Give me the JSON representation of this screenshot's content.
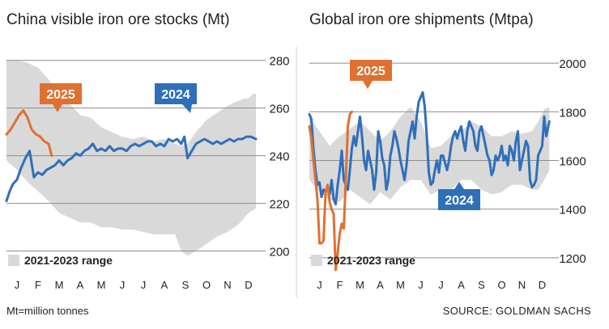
{
  "colors": {
    "series_2024": "#2f6fba",
    "series_2025": "#e07030",
    "range_fill": "#d9d9d9",
    "grid": "#8c8c8c",
    "text": "#222222"
  },
  "footer": {
    "note": "Mt=million tonnes",
    "source": "SOURCE: GOLDMAN SACHS"
  },
  "chart_data": [
    {
      "type": "line",
      "title": "China visible iron ore stocks (Mt)",
      "xlabel": "",
      "ylabel": "",
      "months": [
        "J",
        "F",
        "M",
        "A",
        "M",
        "J",
        "J",
        "A",
        "S",
        "O",
        "N",
        "D"
      ],
      "xlim": [
        0,
        12
      ],
      "ylim": [
        190,
        285
      ],
      "yticks": [
        200,
        220,
        240,
        260,
        280
      ],
      "grid": true,
      "legend_position": "bottom-left",
      "legend_label": "2021-2023 range",
      "range_band": {
        "x": [
          0,
          0.5,
          1.0,
          1.5,
          2.0,
          2.5,
          3.0,
          3.5,
          4.0,
          4.5,
          5.0,
          5.5,
          6.0,
          6.5,
          7.0,
          7.5,
          8.0,
          8.3,
          8.6,
          9.0,
          9.5,
          10.0,
          10.5,
          11.0,
          11.3,
          11.5,
          11.7,
          11.85
        ],
        "upper": [
          280,
          280,
          279,
          277,
          272,
          266,
          262,
          257,
          256,
          252,
          250,
          248,
          247,
          248,
          246,
          247,
          245,
          244,
          245,
          250,
          255,
          258,
          261,
          263,
          264,
          264,
          266,
          266
        ],
        "lower": [
          238,
          234,
          229,
          225,
          221,
          216,
          214,
          212,
          212,
          210,
          210,
          209,
          209,
          208,
          207,
          207,
          207,
          200,
          198,
          200,
          203,
          206,
          208,
          211,
          214,
          216,
          217,
          218
        ]
      },
      "series": [
        {
          "name": "2024",
          "label_position": "above-right",
          "x": [
            0,
            0.15,
            0.3,
            0.5,
            0.7,
            0.9,
            1.1,
            1.3,
            1.5,
            1.7,
            1.9,
            2.1,
            2.3,
            2.5,
            2.7,
            2.9,
            3.1,
            3.3,
            3.5,
            3.7,
            3.9,
            4.1,
            4.3,
            4.5,
            4.7,
            4.9,
            5.1,
            5.3,
            5.5,
            5.7,
            5.9,
            6.1,
            6.3,
            6.5,
            6.7,
            6.9,
            7.1,
            7.3,
            7.5,
            7.7,
            7.9,
            8.1,
            8.3,
            8.45,
            8.6,
            8.8,
            9.0,
            9.2,
            9.4,
            9.6,
            9.8,
            10.0,
            10.2,
            10.4,
            10.6,
            10.8,
            11.0,
            11.2,
            11.4,
            11.6,
            11.85
          ],
          "values": [
            221,
            225,
            228,
            230,
            235,
            239,
            242,
            231,
            233,
            232,
            234,
            235,
            236,
            238,
            236,
            238,
            239,
            241,
            240,
            242,
            243,
            245,
            242,
            243,
            242,
            244,
            242,
            243,
            243,
            242,
            244,
            245,
            244,
            245,
            246,
            246,
            244,
            245,
            244,
            247,
            246,
            247,
            245,
            248,
            239,
            242,
            245,
            246,
            247,
            246,
            245,
            246,
            245,
            246,
            247,
            246,
            247,
            247,
            248,
            248,
            247
          ]
        },
        {
          "name": "2025",
          "label_position": "above",
          "x": [
            0,
            0.2,
            0.4,
            0.6,
            0.8,
            1.0,
            1.2,
            1.4,
            1.6,
            1.8,
            2.0,
            2.15
          ],
          "values": [
            249,
            251,
            254,
            257,
            259,
            256,
            251,
            249,
            248,
            246,
            245,
            240
          ]
        }
      ]
    },
    {
      "type": "line",
      "title": "Global iron ore shipments (Mtpa)",
      "xlabel": "",
      "ylabel": "",
      "months": [
        "J",
        "F",
        "M",
        "A",
        "M",
        "J",
        "J",
        "A",
        "S",
        "O",
        "N",
        "D"
      ],
      "xlim": [
        0,
        12
      ],
      "ylim": [
        1130,
        2060
      ],
      "yticks": [
        1200,
        1400,
        1600,
        1800,
        2000
      ],
      "grid": true,
      "legend_position": "bottom-left",
      "legend_label": "2021-2023 range",
      "range_band": {
        "x": [
          0,
          0.5,
          1.0,
          1.5,
          2.0,
          2.5,
          3.0,
          3.5,
          4.0,
          4.5,
          5.0,
          5.5,
          6.0,
          6.5,
          7.0,
          7.5,
          8.0,
          8.5,
          9.0,
          9.5,
          10.0,
          10.5,
          11.0,
          11.3,
          11.6,
          11.85
        ],
        "upper": [
          1780,
          1720,
          1660,
          1700,
          1730,
          1760,
          1720,
          1680,
          1720,
          1780,
          1820,
          1760,
          1650,
          1660,
          1700,
          1720,
          1760,
          1740,
          1700,
          1700,
          1720,
          1710,
          1720,
          1760,
          1810,
          1820
        ],
        "lower": [
          1520,
          1470,
          1440,
          1430,
          1480,
          1450,
          1420,
          1470,
          1440,
          1490,
          1520,
          1520,
          1460,
          1480,
          1480,
          1520,
          1520,
          1480,
          1460,
          1470,
          1500,
          1500,
          1480,
          1480,
          1520,
          1560
        ]
      },
      "series": [
        {
          "name": "2024",
          "label_position": "below",
          "x": [
            0,
            0.1,
            0.2,
            0.3,
            0.4,
            0.5,
            0.6,
            0.7,
            0.8,
            0.9,
            1.0,
            1.1,
            1.2,
            1.3,
            1.4,
            1.5,
            1.6,
            1.7,
            1.8,
            1.9,
            2.0,
            2.1,
            2.2,
            2.3,
            2.4,
            2.5,
            2.6,
            2.7,
            2.8,
            2.9,
            3.0,
            3.1,
            3.2,
            3.3,
            3.4,
            3.5,
            3.6,
            3.7,
            3.8,
            3.9,
            4.0,
            4.1,
            4.2,
            4.3,
            4.4,
            4.5,
            4.6,
            4.7,
            4.8,
            4.9,
            5.0,
            5.1,
            5.2,
            5.3,
            5.4,
            5.5,
            5.6,
            5.7,
            5.8,
            5.9,
            6.0,
            6.1,
            6.2,
            6.3,
            6.4,
            6.5,
            6.6,
            6.7,
            6.8,
            6.9,
            7.0,
            7.1,
            7.2,
            7.3,
            7.4,
            7.5,
            7.6,
            7.7,
            7.8,
            7.9,
            8.0,
            8.1,
            8.2,
            8.3,
            8.4,
            8.5,
            8.6,
            8.7,
            8.8,
            8.9,
            9.0,
            9.1,
            9.2,
            9.3,
            9.4,
            9.5,
            9.6,
            9.7,
            9.8,
            9.9,
            10.0,
            10.1,
            10.2,
            10.3,
            10.4,
            10.5,
            10.6,
            10.7,
            10.8,
            10.9,
            11.0,
            11.1,
            11.2,
            11.3,
            11.4,
            11.5,
            11.6,
            11.7,
            11.85
          ],
          "values": [
            1790,
            1770,
            1650,
            1560,
            1500,
            1510,
            1450,
            1480,
            1470,
            1490,
            1460,
            1520,
            1440,
            1420,
            1500,
            1560,
            1640,
            1520,
            1500,
            1480,
            1560,
            1650,
            1700,
            1660,
            1720,
            1780,
            1700,
            1600,
            1560,
            1640,
            1600,
            1560,
            1480,
            1550,
            1720,
            1680,
            1610,
            1580,
            1480,
            1520,
            1620,
            1660,
            1720,
            1690,
            1650,
            1600,
            1560,
            1520,
            1580,
            1680,
            1720,
            1760,
            1690,
            1780,
            1840,
            1860,
            1880,
            1820,
            1700,
            1550,
            1500,
            1510,
            1560,
            1600,
            1550,
            1620,
            1620,
            1590,
            1560,
            1600,
            1660,
            1700,
            1720,
            1690,
            1720,
            1740,
            1680,
            1640,
            1720,
            1760,
            1740,
            1720,
            1660,
            1640,
            1720,
            1740,
            1700,
            1660,
            1620,
            1600,
            1540,
            1560,
            1620,
            1600,
            1620,
            1660,
            1600,
            1620,
            1580,
            1660,
            1640,
            1600,
            1680,
            1720,
            1560,
            1600,
            1640,
            1680,
            1660,
            1520,
            1490,
            1500,
            1520,
            1620,
            1640,
            1660,
            1780,
            1700,
            1760
          ]
        },
        {
          "name": "2025",
          "label_position": "above",
          "x": [
            0,
            0.1,
            0.2,
            0.3,
            0.4,
            0.5,
            0.6,
            0.7,
            0.8,
            0.9,
            1.0,
            1.1,
            1.2,
            1.3,
            1.4,
            1.5,
            1.6,
            1.7,
            1.8,
            1.9,
            2.0,
            2.1
          ],
          "values": [
            1740,
            1690,
            1600,
            1520,
            1440,
            1260,
            1260,
            1270,
            1470,
            1500,
            1430,
            1400,
            1380,
            1150,
            1220,
            1300,
            1340,
            1320,
            1520,
            1740,
            1790,
            1800
          ]
        }
      ]
    }
  ]
}
